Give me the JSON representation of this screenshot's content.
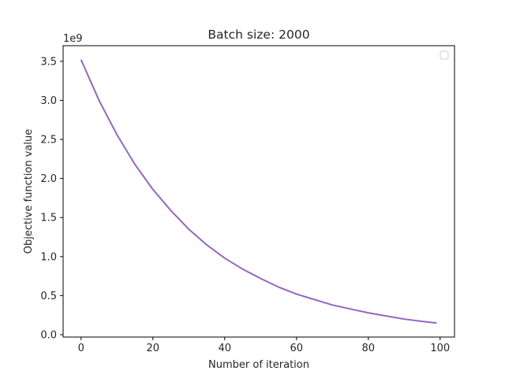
{
  "chart_data": {
    "type": "line",
    "title": "Batch size: 2000",
    "xlabel": "Number of iteration",
    "ylabel": "Objective function value",
    "y_offset_label": "1e9",
    "xlim": [
      -5,
      104
    ],
    "ylim": [
      -0.03,
      3.7
    ],
    "x_ticks": [
      0,
      20,
      40,
      60,
      80,
      100
    ],
    "x_tick_labels": [
      "0",
      "20",
      "40",
      "60",
      "80",
      "100"
    ],
    "y_ticks": [
      0.0,
      0.5,
      1.0,
      1.5,
      2.0,
      2.5,
      3.0,
      3.5
    ],
    "y_tick_labels": [
      "0.0",
      "0.5",
      "1.0",
      "1.5",
      "2.0",
      "2.5",
      "3.0",
      "3.5"
    ],
    "grid": false,
    "legend": "top-right (empty)",
    "series": [
      {
        "color": "#9467bd",
        "x": [
          0,
          5,
          10,
          15,
          20,
          25,
          30,
          35,
          40,
          45,
          50,
          55,
          60,
          65,
          70,
          75,
          80,
          85,
          90,
          95,
          99
        ],
        "y": [
          3.52,
          3.0,
          2.56,
          2.18,
          1.86,
          1.59,
          1.35,
          1.15,
          0.98,
          0.84,
          0.72,
          0.61,
          0.52,
          0.45,
          0.38,
          0.33,
          0.28,
          0.24,
          0.2,
          0.17,
          0.15
        ]
      }
    ]
  }
}
